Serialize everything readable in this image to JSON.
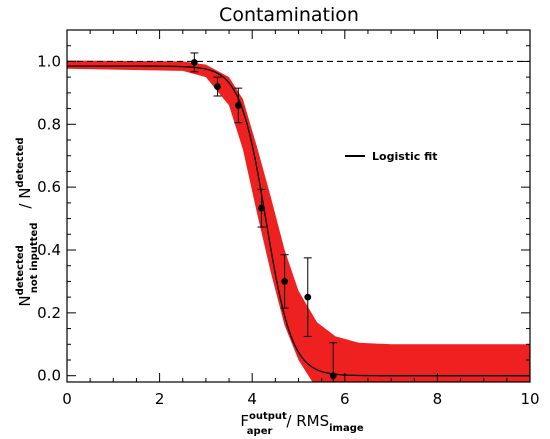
{
  "chart_data": {
    "type": "scatter",
    "title": "Contamination",
    "xlabel": {
      "main": "F",
      "sup": "output",
      "sub": "aper",
      "mid": "/ RMS",
      "sub2": "image"
    },
    "ylabel": {
      "main": "N",
      "sup": "detected",
      "sub": "not inputted",
      "mid": "/ N",
      "sup2": "detected"
    },
    "xlim": [
      0,
      10
    ],
    "ylim": [
      -0.02,
      1.1
    ],
    "xticks": [
      0,
      2,
      4,
      6,
      8,
      10
    ],
    "xtick_labels": [
      "0",
      "2",
      "4",
      "6",
      "8",
      "10"
    ],
    "yticks": [
      0.0,
      0.2,
      0.4,
      0.6,
      0.8,
      1.0
    ],
    "ytick_labels": [
      "0.0",
      "0.2",
      "0.4",
      "0.6",
      "0.8",
      "1.0"
    ],
    "reference_line": {
      "y": 1.0,
      "style": "dashed",
      "color": "#000000"
    },
    "points": [
      {
        "x": 2.75,
        "y": 0.997,
        "err": 0.03
      },
      {
        "x": 3.25,
        "y": 0.92,
        "err": 0.03
      },
      {
        "x": 3.7,
        "y": 0.86,
        "err": 0.055
      },
      {
        "x": 4.2,
        "y": 0.533,
        "err": 0.06
      },
      {
        "x": 4.7,
        "y": 0.3,
        "err": 0.085
      },
      {
        "x": 5.2,
        "y": 0.25,
        "err": 0.125
      },
      {
        "x": 5.75,
        "y": 0.0,
        "err": 0.105
      }
    ],
    "fit": {
      "name": "Logistic fit",
      "model": "logistic",
      "upper": 0.985,
      "x0": 4.3,
      "width": 0.28,
      "color": "#000000"
    },
    "band": {
      "color": "#ee2020",
      "upper": [
        [
          0,
          1.003
        ],
        [
          2.5,
          1.0
        ],
        [
          3.0,
          0.99
        ],
        [
          3.5,
          0.95
        ],
        [
          3.8,
          0.88
        ],
        [
          4.1,
          0.73
        ],
        [
          4.4,
          0.57
        ],
        [
          4.7,
          0.4
        ],
        [
          5.0,
          0.27
        ],
        [
          5.4,
          0.17
        ],
        [
          5.8,
          0.125
        ],
        [
          6.3,
          0.105
        ],
        [
          7.0,
          0.1
        ],
        [
          10.0,
          0.1
        ]
      ],
      "lower": [
        [
          10.0,
          -0.02
        ],
        [
          5.3,
          -0.02
        ],
        [
          5.0,
          0.05
        ],
        [
          4.7,
          0.16
        ],
        [
          4.4,
          0.33
        ],
        [
          4.1,
          0.52
        ],
        [
          3.8,
          0.72
        ],
        [
          3.5,
          0.86
        ],
        [
          3.0,
          0.95
        ],
        [
          2.5,
          0.97
        ],
        [
          0,
          0.977
        ]
      ]
    },
    "legend": {
      "label": "Logistic fit",
      "position": "right"
    },
    "grid": false
  }
}
